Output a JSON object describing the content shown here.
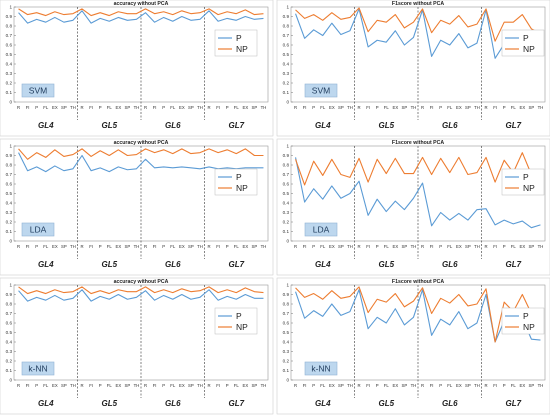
{
  "chart_data": [
    {
      "type": "line",
      "row": 0,
      "col": 0,
      "title": "accuracy without PCA",
      "classifier": "SVM",
      "ylim": [
        0,
        1
      ],
      "yticks": [
        "0",
        "0.1",
        "0.2",
        "0.3",
        "0.4",
        "0.5",
        "0.6",
        "0.7",
        "0.8",
        "0.9",
        "1"
      ],
      "x_per_group": [
        "R",
        "FI",
        "P",
        "FL",
        "EX",
        "SP",
        "TH"
      ],
      "groups": [
        "GL4",
        "GL5",
        "GL6",
        "GL7"
      ],
      "legend": "right",
      "series": [
        {
          "name": "P",
          "color": "#5b9bd5",
          "values": [
            0.94,
            0.83,
            0.87,
            0.84,
            0.89,
            0.84,
            0.86,
            0.96,
            0.83,
            0.88,
            0.85,
            0.89,
            0.86,
            0.87,
            0.94,
            0.84,
            0.89,
            0.85,
            0.9,
            0.86,
            0.87,
            0.96,
            0.85,
            0.88,
            0.86,
            0.9,
            0.87,
            0.88
          ]
        },
        {
          "name": "NP",
          "color": "#ed7d31",
          "values": [
            0.98,
            0.92,
            0.94,
            0.91,
            0.95,
            0.92,
            0.93,
            0.98,
            0.91,
            0.94,
            0.91,
            0.95,
            0.93,
            0.93,
            0.98,
            0.93,
            0.95,
            0.92,
            0.96,
            0.93,
            0.94,
            0.98,
            0.92,
            0.95,
            0.93,
            0.97,
            0.92,
            0.93
          ]
        }
      ]
    },
    {
      "type": "line",
      "row": 0,
      "col": 1,
      "title": "F1score without PCA",
      "classifier": "SVM",
      "ylim": [
        0,
        1
      ],
      "yticks": [
        "0",
        "0.1",
        "0.2",
        "0.3",
        "0.4",
        "0.5",
        "0.6",
        "0.7",
        "0.8",
        "0.9",
        "1"
      ],
      "x_per_group": [
        "R",
        "FI",
        "P",
        "FL",
        "EX",
        "SP",
        "TH"
      ],
      "groups": [
        "GL4",
        "GL5",
        "GL6",
        "GL7"
      ],
      "legend": "right",
      "series": [
        {
          "name": "P",
          "color": "#5b9bd5",
          "values": [
            0.93,
            0.67,
            0.76,
            0.7,
            0.83,
            0.71,
            0.75,
            0.98,
            0.58,
            0.65,
            0.63,
            0.75,
            0.6,
            0.68,
            0.97,
            0.48,
            0.65,
            0.6,
            0.72,
            0.57,
            0.62,
            0.97,
            0.46,
            0.61,
            0.58,
            0.72,
            0.56,
            0.57
          ]
        },
        {
          "name": "NP",
          "color": "#ed7d31",
          "values": [
            0.97,
            0.88,
            0.92,
            0.86,
            0.94,
            0.87,
            0.89,
            0.99,
            0.74,
            0.86,
            0.84,
            0.92,
            0.78,
            0.84,
            0.98,
            0.73,
            0.86,
            0.82,
            0.91,
            0.79,
            0.82,
            0.98,
            0.64,
            0.84,
            0.84,
            0.92,
            0.77,
            0.72
          ]
        }
      ]
    },
    {
      "type": "line",
      "row": 1,
      "col": 0,
      "title": "accuracy without PCA",
      "classifier": "LDA",
      "ylim": [
        0,
        1
      ],
      "yticks": [
        "0",
        "0.1",
        "0.2",
        "0.3",
        "0.4",
        "0.5",
        "0.6",
        "0.7",
        "0.8",
        "0.9",
        "1"
      ],
      "x_per_group": [
        "R",
        "FI",
        "P",
        "FL",
        "EX",
        "SP",
        "TH"
      ],
      "groups": [
        "GL4",
        "GL5",
        "GL6",
        "GL7"
      ],
      "legend": "right",
      "series": [
        {
          "name": "P",
          "color": "#5b9bd5",
          "values": [
            0.93,
            0.74,
            0.78,
            0.73,
            0.79,
            0.74,
            0.76,
            0.9,
            0.74,
            0.77,
            0.73,
            0.78,
            0.75,
            0.76,
            0.86,
            0.77,
            0.78,
            0.77,
            0.78,
            0.77,
            0.76,
            0.78,
            0.76,
            0.77,
            0.76,
            0.77,
            0.77,
            0.77
          ]
        },
        {
          "name": "NP",
          "color": "#ed7d31",
          "values": [
            0.97,
            0.86,
            0.93,
            0.88,
            0.96,
            0.89,
            0.91,
            0.97,
            0.89,
            0.95,
            0.9,
            0.96,
            0.9,
            0.91,
            0.97,
            0.93,
            0.96,
            0.92,
            0.97,
            0.92,
            0.93,
            0.97,
            0.93,
            0.96,
            0.92,
            0.97,
            0.9,
            0.9
          ]
        }
      ]
    },
    {
      "type": "line",
      "row": 1,
      "col": 1,
      "title": "F1score without PCA",
      "classifier": "LDA",
      "ylim": [
        0,
        1
      ],
      "yticks": [
        "0",
        "0.1",
        "0.2",
        "0.3",
        "0.4",
        "0.5",
        "0.6",
        "0.7",
        "0.8",
        "0.9",
        "1"
      ],
      "x_per_group": [
        "R",
        "FI",
        "P",
        "FL",
        "EX",
        "SP",
        "TH"
      ],
      "groups": [
        "GL4",
        "GL5",
        "GL6",
        "GL7"
      ],
      "legend": "right",
      "series": [
        {
          "name": "P",
          "color": "#5b9bd5",
          "values": [
            0.88,
            0.41,
            0.55,
            0.44,
            0.58,
            0.45,
            0.5,
            0.63,
            0.27,
            0.44,
            0.31,
            0.42,
            0.33,
            0.45,
            0.61,
            0.16,
            0.3,
            0.22,
            0.29,
            0.22,
            0.33,
            0.34,
            0.17,
            0.22,
            0.18,
            0.21,
            0.14,
            0.17
          ]
        },
        {
          "name": "NP",
          "color": "#ed7d31",
          "values": [
            0.86,
            0.59,
            0.84,
            0.69,
            0.86,
            0.7,
            0.67,
            0.87,
            0.62,
            0.86,
            0.71,
            0.87,
            0.71,
            0.71,
            0.88,
            0.7,
            0.87,
            0.72,
            0.88,
            0.7,
            0.72,
            0.88,
            0.62,
            0.85,
            0.72,
            0.93,
            0.7,
            0.62
          ]
        }
      ]
    },
    {
      "type": "line",
      "row": 2,
      "col": 0,
      "title": "accuracy without PCA",
      "classifier": "k-NN",
      "ylim": [
        0,
        1
      ],
      "yticks": [
        "0",
        "0.1",
        "0.2",
        "0.3",
        "0.4",
        "0.5",
        "0.6",
        "0.7",
        "0.8",
        "0.9",
        "1"
      ],
      "x_per_group": [
        "R",
        "FI",
        "P",
        "FL",
        "EX",
        "SP",
        "TH"
      ],
      "groups": [
        "GL4",
        "GL5",
        "GL6",
        "GL7"
      ],
      "legend": "right",
      "series": [
        {
          "name": "P",
          "color": "#5b9bd5",
          "values": [
            0.94,
            0.83,
            0.87,
            0.84,
            0.89,
            0.84,
            0.86,
            0.95,
            0.83,
            0.88,
            0.85,
            0.9,
            0.85,
            0.87,
            0.94,
            0.84,
            0.89,
            0.85,
            0.9,
            0.85,
            0.87,
            0.95,
            0.84,
            0.88,
            0.85,
            0.9,
            0.86,
            0.86
          ]
        },
        {
          "name": "NP",
          "color": "#ed7d31",
          "values": [
            0.98,
            0.91,
            0.94,
            0.91,
            0.95,
            0.92,
            0.93,
            0.98,
            0.91,
            0.94,
            0.91,
            0.95,
            0.93,
            0.93,
            0.98,
            0.92,
            0.95,
            0.92,
            0.96,
            0.93,
            0.94,
            0.98,
            0.92,
            0.95,
            0.92,
            0.97,
            0.93,
            0.92
          ]
        }
      ]
    },
    {
      "type": "line",
      "row": 2,
      "col": 1,
      "title": "F1score without PCA",
      "classifier": "k-NN",
      "ylim": [
        0,
        1
      ],
      "yticks": [
        "0",
        "0.1",
        "0.2",
        "0.3",
        "0.4",
        "0.5",
        "0.6",
        "0.7",
        "0.8",
        "0.9",
        "1"
      ],
      "x_per_group": [
        "R",
        "FI",
        "P",
        "FL",
        "EX",
        "SP",
        "TH"
      ],
      "groups": [
        "GL4",
        "GL5",
        "GL6",
        "GL7"
      ],
      "legend": "right",
      "series": [
        {
          "name": "P",
          "color": "#5b9bd5",
          "values": [
            0.93,
            0.65,
            0.73,
            0.67,
            0.8,
            0.68,
            0.72,
            0.95,
            0.54,
            0.66,
            0.6,
            0.75,
            0.58,
            0.66,
            0.95,
            0.47,
            0.64,
            0.58,
            0.72,
            0.54,
            0.6,
            0.9,
            0.4,
            0.62,
            0.49,
            0.65,
            0.43,
            0.42
          ]
        },
        {
          "name": "NP",
          "color": "#ed7d31",
          "values": [
            0.97,
            0.87,
            0.91,
            0.85,
            0.94,
            0.86,
            0.88,
            0.98,
            0.71,
            0.85,
            0.82,
            0.91,
            0.77,
            0.83,
            0.97,
            0.7,
            0.86,
            0.81,
            0.9,
            0.78,
            0.8,
            0.96,
            0.4,
            0.82,
            0.72,
            0.9,
            0.7,
            0.55
          ]
        }
      ]
    }
  ]
}
